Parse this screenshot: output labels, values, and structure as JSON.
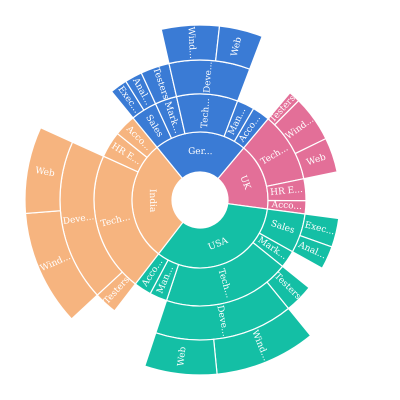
{
  "chart_data": {
    "type": "sunburst",
    "title": "",
    "legend": "none",
    "center": "hole",
    "colors": {
      "UK": "#e36f98",
      "USA": "#14bfa5",
      "India": "#f6b47f",
      "Germany": "#3a7bd5"
    },
    "hierarchy": [
      {
        "name": "UK",
        "label": "UK",
        "value": 12,
        "children": [
          {
            "name": "Tech",
            "label": "Tech...",
            "value": 8,
            "children": [
              {
                "name": "Testers",
                "label": "Testers",
                "value": 1
              },
              {
                "name": "Windows Developers",
                "label": "Wind...",
                "value": 4
              },
              {
                "name": "Web Developers",
                "label": "Web",
                "value": 3
              }
            ]
          },
          {
            "name": "HR Executives",
            "label": "HR E...",
            "value": 2.5
          },
          {
            "name": "Accounts",
            "label": "Acco...",
            "value": 1.5
          }
        ]
      },
      {
        "name": "USA",
        "label": "USA",
        "value": 25,
        "children": [
          {
            "name": "Sales",
            "label": "Sales",
            "value": 4.5,
            "children": [
              {
                "name": "Executives",
                "label": "Exec...",
                "value": 2.5
              },
              {
                "name": "Analysts",
                "label": "Anal...",
                "value": 2
              }
            ]
          },
          {
            "name": "Marketing",
            "label": "Mark...",
            "value": 2
          },
          {
            "name": "Tech",
            "label": "Tech...",
            "value": 14.5,
            "children": [
              {
                "name": "Testers",
                "label": "Testers",
                "value": 2.5
              },
              {
                "name": "Developers",
                "label": "Deve...",
                "value": 12,
                "children": [
                  {
                    "name": "Windows Developers",
                    "label": "Wind...",
                    "value": 7
                  },
                  {
                    "name": "Web Developers",
                    "label": "Web",
                    "value": 5
                  }
                ]
              }
            ]
          },
          {
            "name": "Management",
            "label": "Man...",
            "value": 2
          },
          {
            "name": "Accounts",
            "label": "Acco...",
            "value": 2
          }
        ]
      },
      {
        "name": "India",
        "label": "India",
        "value": 21.5,
        "children": [
          {
            "name": "Tech",
            "label": "Tech...",
            "value": 16,
            "children": [
              {
                "name": "Testers",
                "label": "Testers",
                "value": 2
              },
              {
                "name": "Developers",
                "label": "Deve...",
                "value": 14,
                "children": [
                  {
                    "name": "Windows Developers",
                    "label": "Wind...",
                    "value": 8
                  },
                  {
                    "name": "Web Developers",
                    "label": "Web",
                    "value": 6
                  }
                ]
              }
            ]
          },
          {
            "name": "HR Executives",
            "label": "HR E...",
            "value": 3
          },
          {
            "name": "Accounts",
            "label": "Acco...",
            "value": 2.5
          }
        ]
      },
      {
        "name": "Germany",
        "label": "Ger...",
        "value": 16.5,
        "children": [
          {
            "name": "Sales",
            "label": "Sales",
            "value": 3,
            "children": [
              {
                "name": "Executives",
                "label": "Exec...",
                "value": 1.5
              },
              {
                "name": "Analysts",
                "label": "Anal...",
                "value": 1.5
              }
            ]
          },
          {
            "name": "Marketing",
            "label": "Mark...",
            "value": 2.5,
            "children": [
              {
                "name": "Testers",
                "label": "Testers",
                "value": 2.5
              }
            ]
          },
          {
            "name": "Tech",
            "label": "Tech...",
            "value": 7,
            "children": [
              {
                "name": "Developers",
                "label": "Deve...",
                "value": 7,
                "children": [
                  {
                    "name": "Windows Developers",
                    "label": "Wind...",
                    "value": 4
                  },
                  {
                    "name": "Web Developers",
                    "label": "Web",
                    "value": 3
                  }
                ]
              }
            ]
          },
          {
            "name": "Management",
            "label": "Man...",
            "value": 2
          },
          {
            "name": "Accounts",
            "label": "Acco...",
            "value": 2
          }
        ]
      }
    ]
  }
}
